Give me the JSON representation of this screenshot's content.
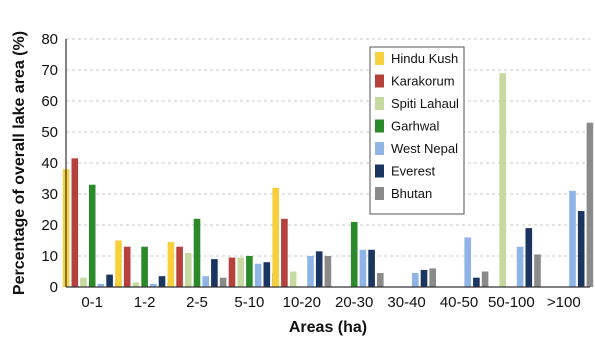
{
  "chart_data": {
    "type": "bar",
    "title": "",
    "xlabel": "Areas (ha)",
    "ylabel": "Percentage of overall lake area (%)",
    "ylim": [
      0,
      80
    ],
    "yticks": [
      0,
      10,
      20,
      30,
      40,
      50,
      60,
      70,
      80
    ],
    "grid": true,
    "legend_position": "top-right",
    "categories": [
      "0-1",
      "1-2",
      "2-5",
      "5-10",
      "10-20",
      "20-30",
      "30-40",
      "40-50",
      "50-100",
      ">100"
    ],
    "series": [
      {
        "name": "Hindu Kush",
        "color": "#f7d03c",
        "values": [
          38,
          15,
          14.5,
          0,
          32,
          0,
          0,
          0,
          0,
          0
        ]
      },
      {
        "name": "Karakorum",
        "color": "#b5403c",
        "values": [
          41.5,
          13,
          13,
          9.5,
          22,
          0,
          0,
          0,
          0,
          0
        ]
      },
      {
        "name": "Spiti Lahaul",
        "color": "#c6d9a0",
        "values": [
          3,
          1.5,
          11,
          9.5,
          5,
          0,
          0,
          0,
          69,
          0
        ]
      },
      {
        "name": "Garhwal",
        "color": "#2a8a2a",
        "values": [
          33,
          13,
          22,
          10,
          0,
          21,
          0,
          0,
          0,
          0
        ]
      },
      {
        "name": "West Nepal",
        "color": "#8fb5e6",
        "values": [
          1,
          1,
          3.5,
          7.5,
          10,
          12,
          4.5,
          16,
          13,
          31
        ]
      },
      {
        "name": "Everest",
        "color": "#1a3560",
        "values": [
          4,
          3.5,
          9,
          8,
          11.5,
          12,
          5.5,
          3,
          19,
          24.5
        ]
      },
      {
        "name": "Bhutan",
        "color": "#8a8a8a",
        "values": [
          1.5,
          1.5,
          3,
          4.5,
          10,
          4.5,
          6,
          5,
          10.5,
          53
        ]
      }
    ]
  }
}
